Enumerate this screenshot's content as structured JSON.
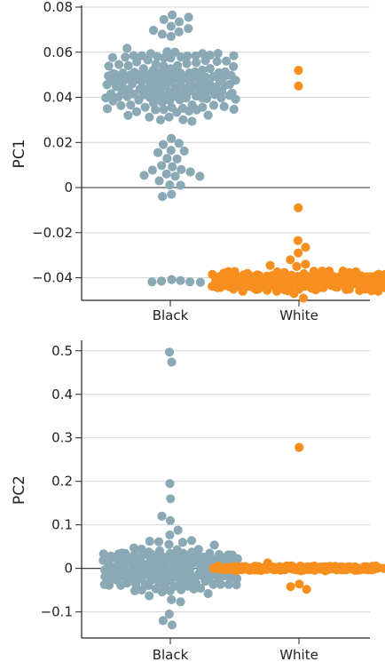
{
  "colors": {
    "black_group": "#8aa9b5",
    "white_group": "#f68f1e",
    "gridline": "#d3d3d3",
    "zero_line": "#444444",
    "axis": "#222222"
  },
  "chart_data": [
    {
      "type": "scatter",
      "subtype": "beeswarm",
      "ylabel": "PC1",
      "xlabel": "",
      "categories": [
        "Black",
        "White"
      ],
      "ylim": [
        -0.05,
        0.08
      ],
      "yticks": [
        0.08,
        0.06,
        0.04,
        0.02,
        0,
        -0.02,
        -0.04
      ],
      "ytick_labels": [
        "0.08",
        "0.06",
        "0.04",
        "0.02",
        "0",
        "−0.02",
        "−0.04"
      ],
      "grid": true,
      "series": [
        {
          "category": "Black",
          "color": "#8aa9b5",
          "clusters": [
            {
              "center": 0.0465,
              "spread": 0.0145,
              "count": 160,
              "halfwidth": 68
            },
            {
              "center": 0.012,
              "spread": 0.01,
              "count": 16,
              "halfwidth": 20
            }
          ],
          "values": [
            0.0765,
            0.0755,
            0.0745,
            0.0735,
            0.0715,
            0.0705,
            0.069,
            0.068,
            0.067,
            -0.003,
            0.001,
            0.003,
            0.005,
            0.006,
            0.008,
            -0.0415,
            -0.0418,
            -0.042,
            -0.0418,
            -0.0412,
            -0.0408
          ]
        },
        {
          "category": "White",
          "color": "#f68f1e",
          "clusters": [
            {
              "center": -0.0415,
              "spread": 0.0028,
              "count": 320,
              "halfwidth": 92
            }
          ],
          "values": [
            0.052,
            0.045,
            -0.009,
            -0.0235,
            -0.0265,
            -0.029,
            -0.032,
            -0.034,
            -0.0345,
            -0.035,
            -0.047,
            -0.049
          ]
        }
      ]
    },
    {
      "type": "scatter",
      "subtype": "beeswarm",
      "ylabel": "PC2",
      "xlabel": "",
      "categories": [
        "Black",
        "White"
      ],
      "ylim": [
        -0.16,
        0.52
      ],
      "yticks": [
        0.5,
        0.4,
        0.3,
        0.2,
        0.1,
        0,
        -0.1
      ],
      "ytick_labels": [
        "0.5",
        "0.4",
        "0.3",
        "0.2",
        "0.1",
        "0",
        "−0.1"
      ],
      "grid": true,
      "series": [
        {
          "category": "Black",
          "color": "#8aa9b5",
          "clusters": [
            {
              "center": 0.0,
              "spread": 0.048,
              "count": 210,
              "halfwidth": 70
            }
          ],
          "values": [
            0.497,
            0.474,
            0.195,
            0.16,
            0.12,
            0.11,
            0.088,
            -0.105,
            -0.12,
            -0.13
          ]
        },
        {
          "category": "White",
          "color": "#f68f1e",
          "clusters": [
            {
              "center": 0.0,
              "spread": 0.0035,
              "count": 300,
              "halfwidth": 92
            }
          ],
          "values": [
            0.278,
            0.0125,
            -0.036,
            -0.042,
            -0.048
          ]
        }
      ]
    }
  ]
}
